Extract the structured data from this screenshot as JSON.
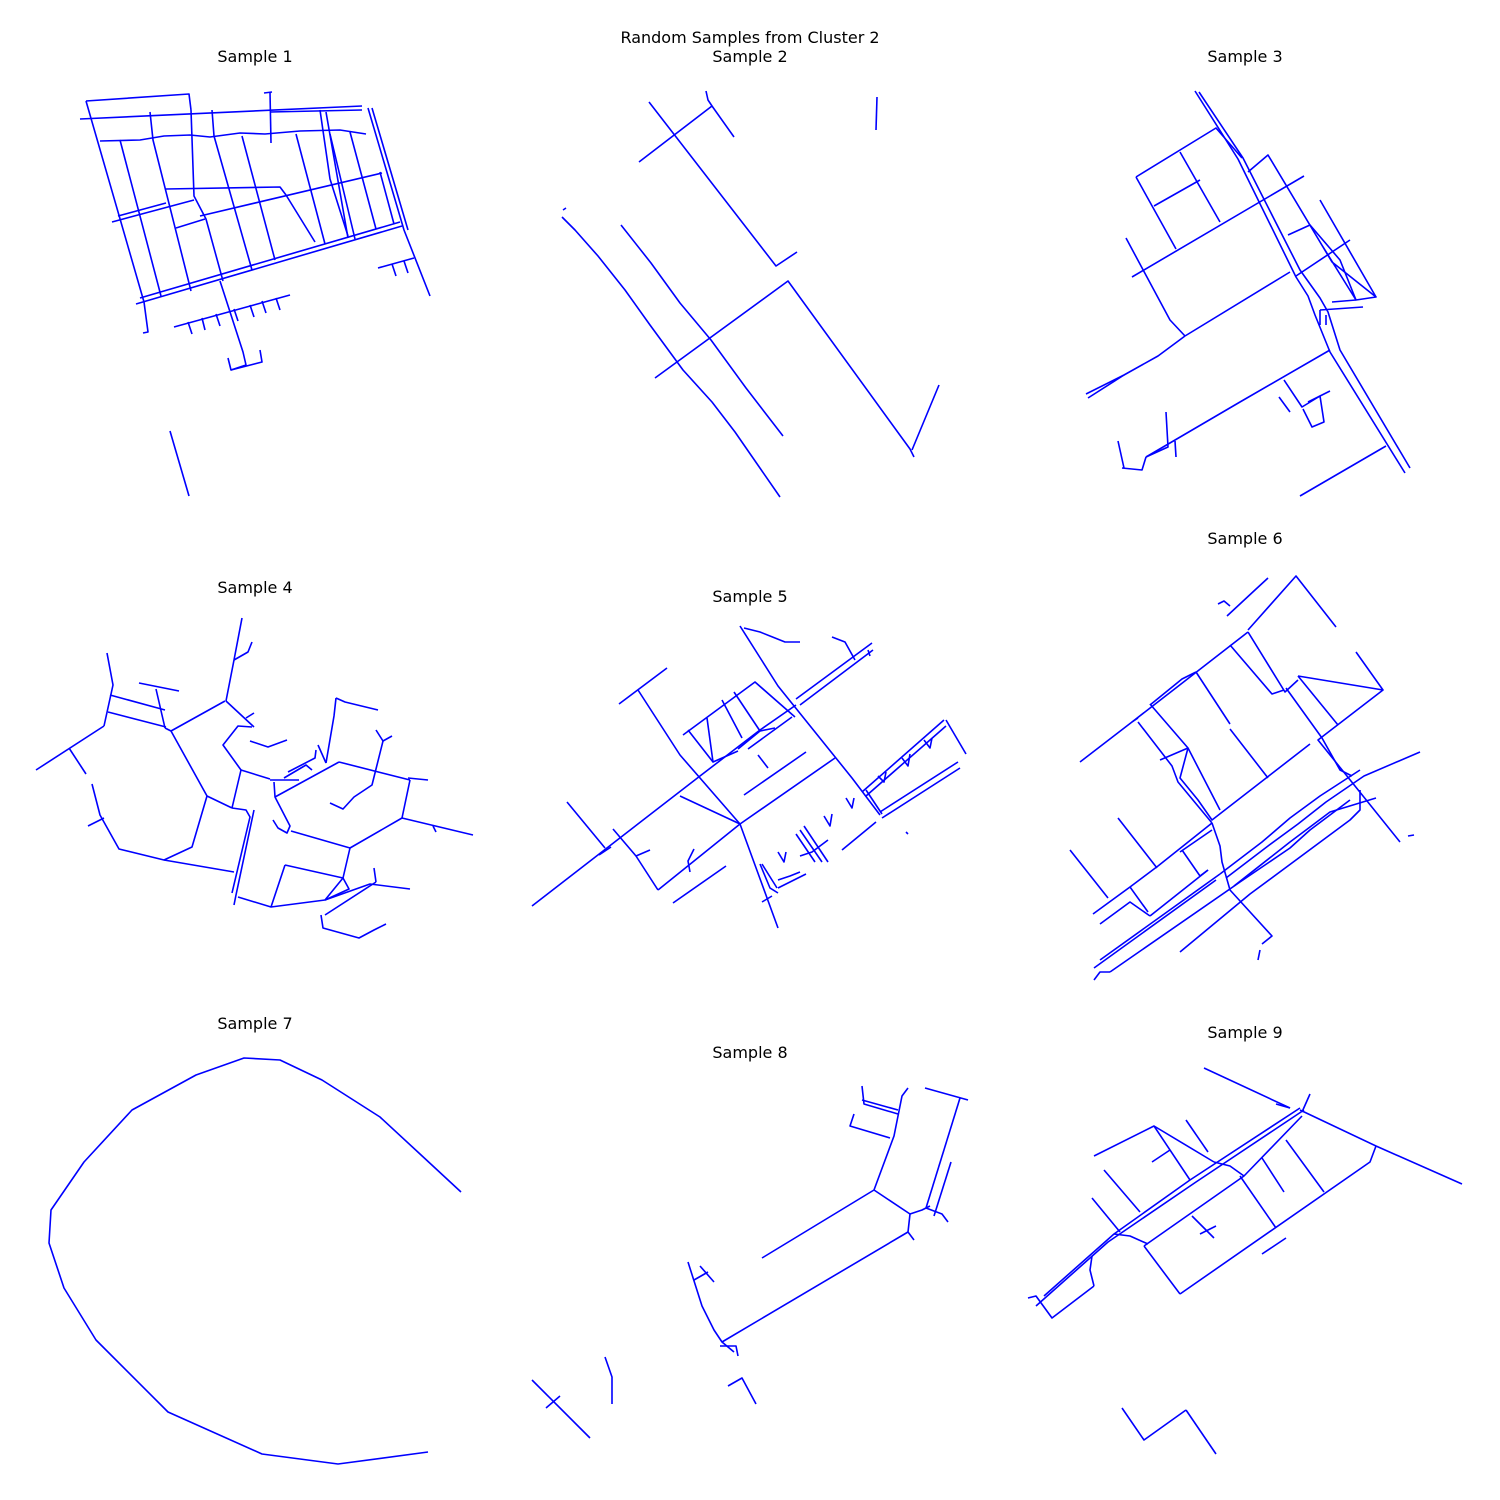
{
  "figure": {
    "title": "Random Samples from Cluster 2",
    "line_color": "#0000ff",
    "samples": [
      {
        "title": "Sample 1"
      },
      {
        "title": "Sample 2"
      },
      {
        "title": "Sample 3"
      },
      {
        "title": "Sample 4"
      },
      {
        "title": "Sample 5"
      },
      {
        "title": "Sample 6"
      },
      {
        "title": "Sample 7"
      },
      {
        "title": "Sample 8"
      },
      {
        "title": "Sample 9"
      }
    ]
  }
}
